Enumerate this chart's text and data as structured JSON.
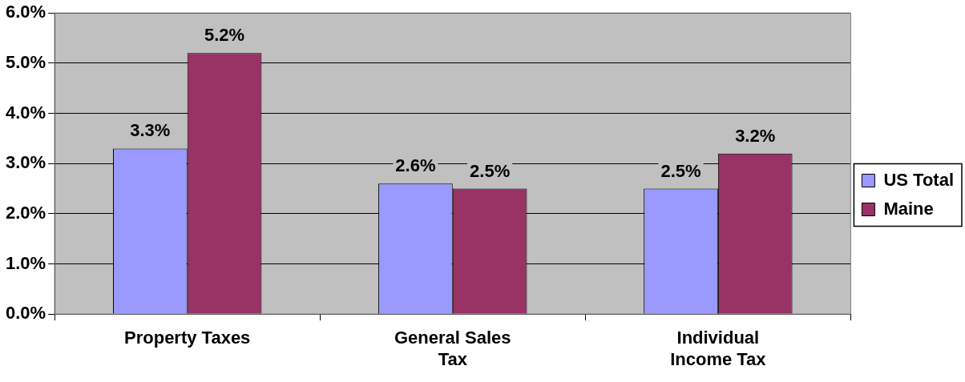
{
  "chart_data": {
    "type": "bar",
    "categories": [
      "Property Taxes",
      "General Sales Tax",
      "Individual Income Tax"
    ],
    "series": [
      {
        "name": "US Total",
        "color": "#9999ff",
        "values": [
          3.3,
          2.6,
          2.5
        ],
        "value_labels": [
          "3.3%",
          "2.6%",
          "2.5%"
        ]
      },
      {
        "name": "Maine",
        "color": "#993366",
        "values": [
          5.2,
          2.5,
          3.2
        ],
        "value_labels": [
          "5.2%",
          "2.5%",
          "3.2%"
        ]
      }
    ],
    "ylim": [
      0,
      6
    ],
    "yticks": [
      {
        "value": 0,
        "label": "0.0%"
      },
      {
        "value": 1,
        "label": "1.0%"
      },
      {
        "value": 2,
        "label": "2.0%"
      },
      {
        "value": 3,
        "label": "3.0%"
      },
      {
        "value": 4,
        "label": "4.0%"
      },
      {
        "value": 5,
        "label": "5.0%"
      },
      {
        "value": 6,
        "label": "6.0%"
      }
    ],
    "grid": "y",
    "legend": "right"
  }
}
